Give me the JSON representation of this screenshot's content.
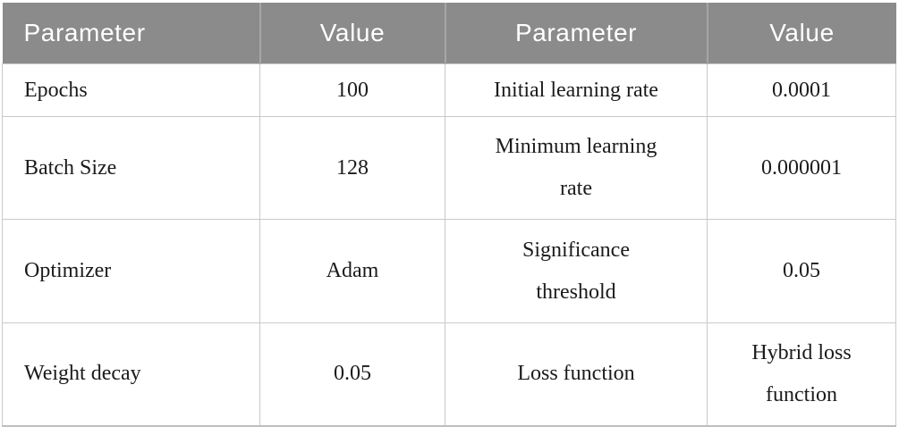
{
  "table": {
    "header": [
      "Parameter",
      "Value",
      "Parameter",
      "Value"
    ],
    "rows": [
      [
        "Epochs",
        "100",
        "Initial learning rate",
        "0.0001"
      ],
      [
        "Batch Size",
        "128",
        "Minimum learning\nrate",
        "0.000001"
      ],
      [
        "Optimizer",
        "Adam",
        "Significance\nthreshold",
        "0.05"
      ],
      [
        "Weight decay",
        "0.05",
        "Loss function",
        "Hybrid loss\nfunction"
      ]
    ]
  },
  "colors": {
    "header_background": "#8b8b8b",
    "header_text": "#ffffff",
    "header_divider": "#a6a6a6",
    "cell_border": "#c9c9c9",
    "bottom_border": "#bdbdbd",
    "body_text": "#1b1b1b"
  }
}
